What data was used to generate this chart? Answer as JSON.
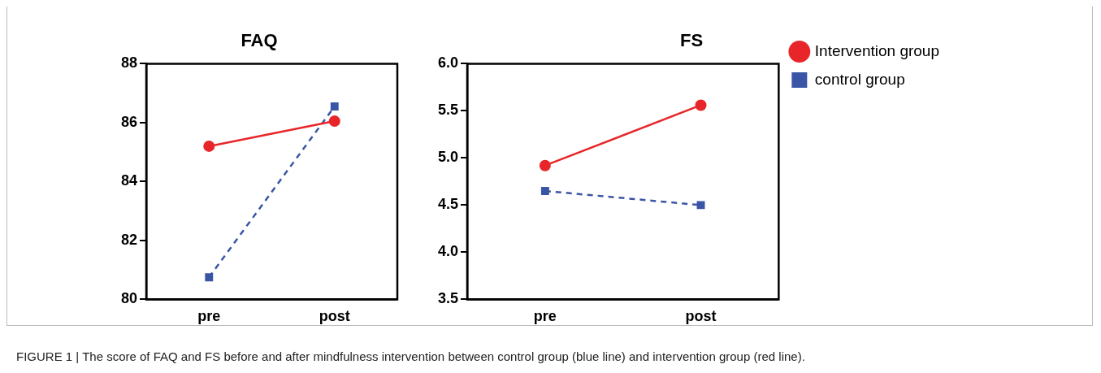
{
  "chart_data": [
    {
      "type": "line",
      "title": "FAQ",
      "categories": [
        "pre",
        "post"
      ],
      "ylim": [
        80,
        88
      ],
      "yticks": [
        80,
        82,
        84,
        86,
        88
      ],
      "grid": false,
      "legend": false,
      "series": [
        {
          "color": "#e8262a",
          "values": [
            85.2,
            86.05
          ],
          "marker": "circle",
          "line_style": "solid"
        },
        {
          "color": "#3a55a5",
          "values": [
            80.75,
            86.55
          ],
          "marker": "square",
          "line_style": "dashed"
        }
      ],
      "annotations": [
        "FIGURE 1 | The score of FAQ and FS before and after mindfulness intervention between control group (blue line) and intervention group (red line)."
      ]
    },
    {
      "type": "line",
      "title": "FS",
      "categories": [
        "pre",
        "post"
      ],
      "ylim": [
        3.5,
        6.0
      ],
      "yticks": [
        {
          "value": 3.5,
          "label": "3.5"
        },
        {
          "value": 4.0,
          "label": "4.0"
        },
        {
          "value": 4.5,
          "label": "4.5"
        },
        {
          "value": 5.0,
          "label": "5.0"
        },
        {
          "value": 5.5,
          "label": "5.5"
        },
        {
          "value": 6.0,
          "label": "6.0"
        }
      ],
      "grid": false,
      "legend": "right",
      "series": [
        {
          "name": "Intervention group",
          "color": "#e8262a",
          "values": [
            4.92,
            5.56
          ],
          "marker": "circle",
          "line_style": "solid"
        },
        {
          "name": "control group",
          "color": "#3a55a5",
          "values": [
            4.65,
            4.5
          ],
          "marker": "square",
          "line_style": "dashed"
        }
      ]
    }
  ]
}
